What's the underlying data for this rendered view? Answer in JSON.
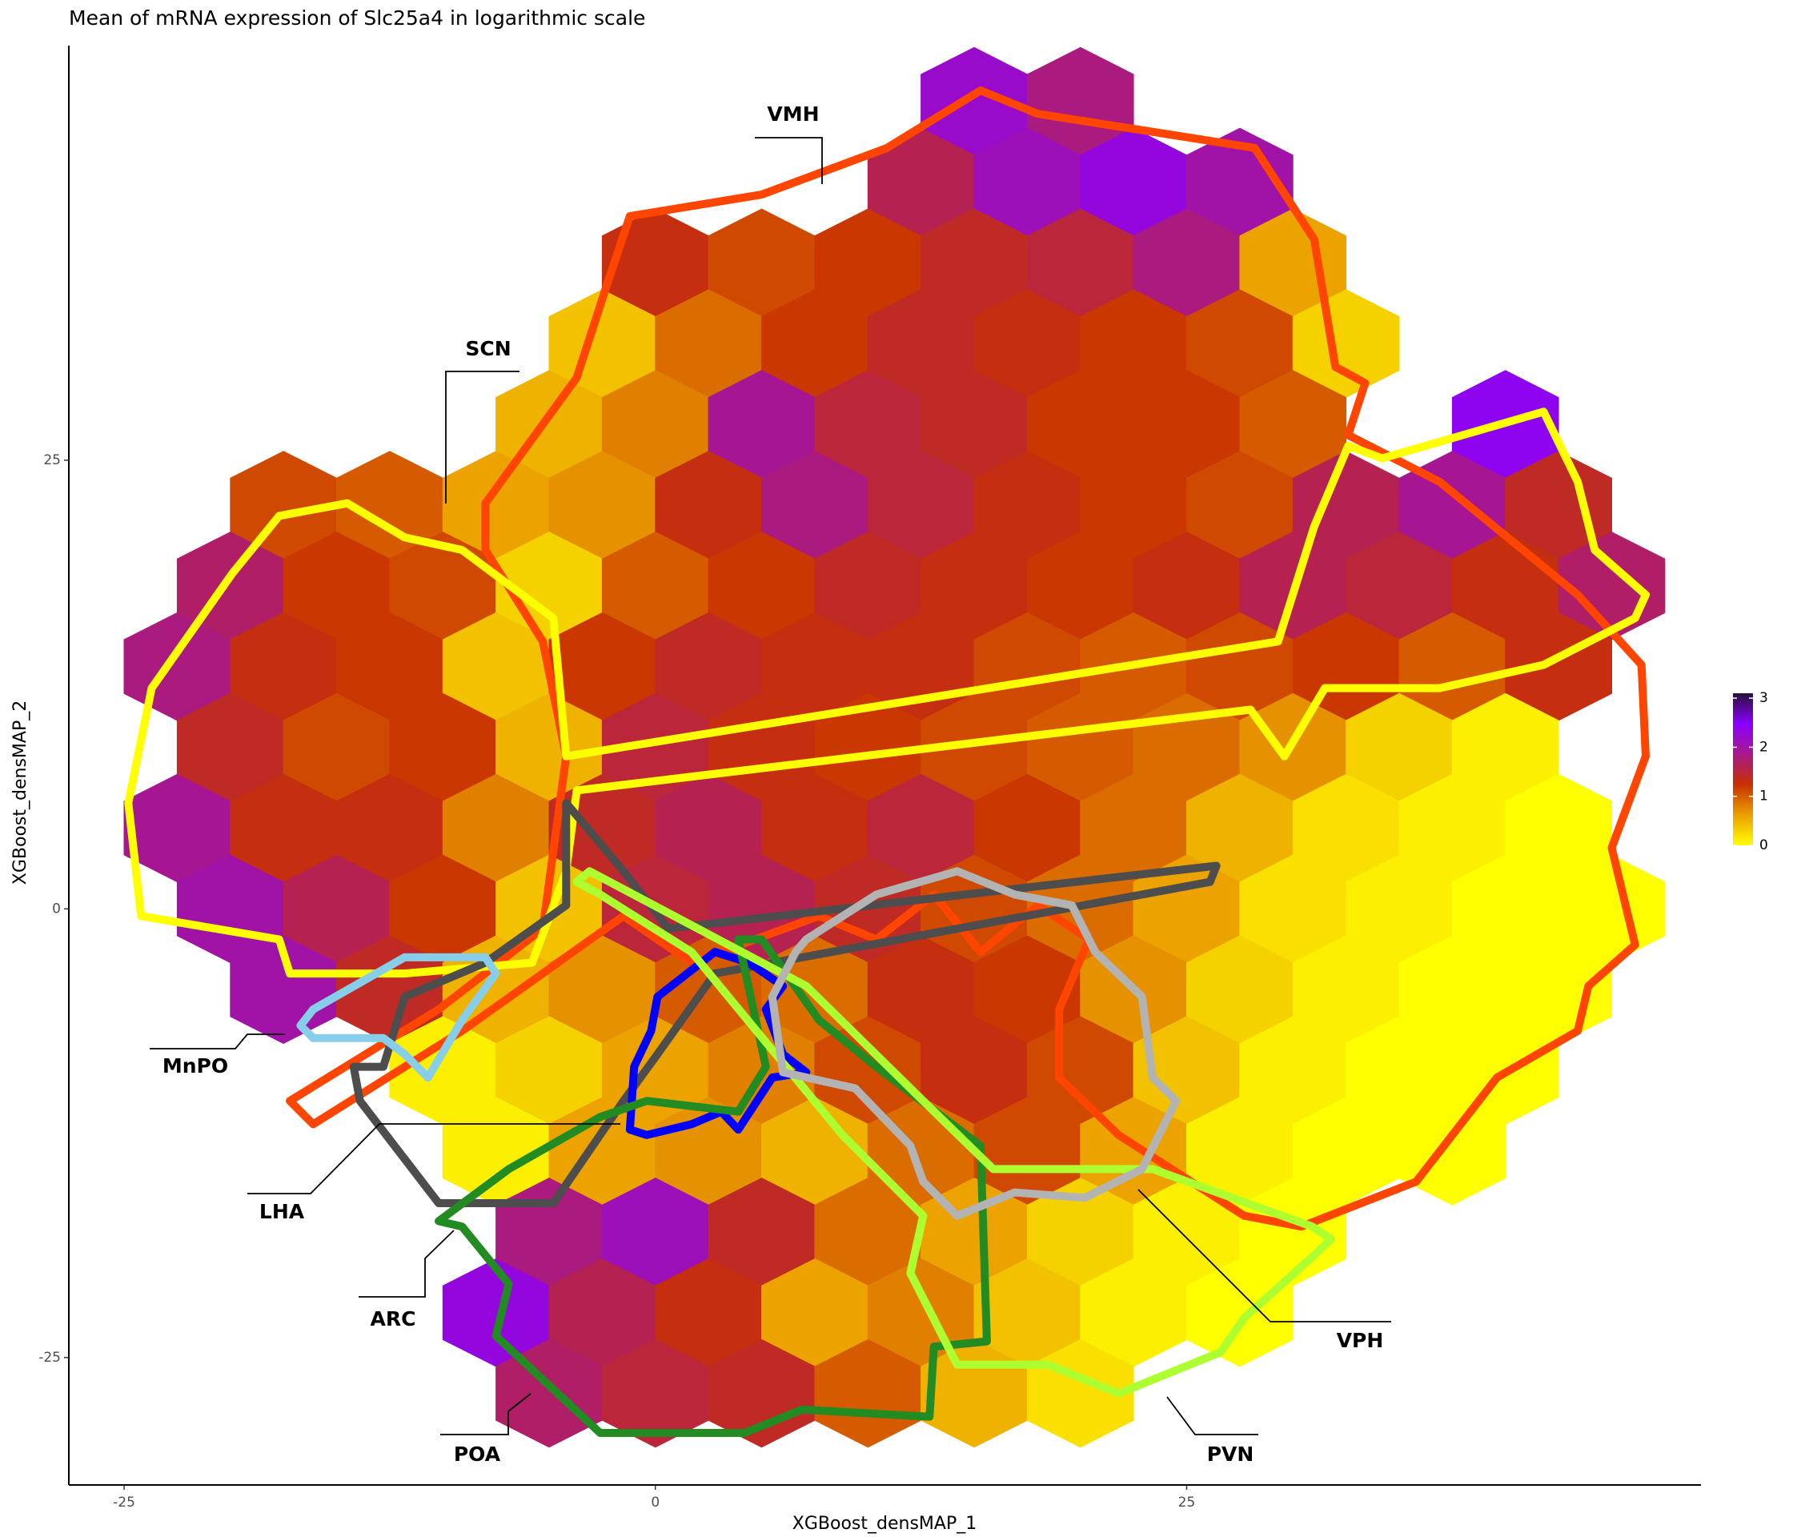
{
  "chart_data": {
    "type": "hexbin",
    "title": "Mean of mRNA expression of Slc25a4 in logarithmic scale",
    "x_label": "XGBoost_densMAP_1",
    "y_label": "XGBoost_densMAP_2",
    "xlim": [
      -27.6,
      49.2
    ],
    "ylim": [
      -32.1,
      48.1
    ],
    "xticks": [
      -25,
      0,
      25
    ],
    "yticks": [
      -25,
      0,
      25
    ],
    "grid": false,
    "clim": [
      0,
      3.1
    ],
    "cticks": [
      0,
      1,
      2,
      3
    ],
    "colorscale": [
      "#ffff00",
      "#eba000",
      "#c83000",
      "#a8188c",
      "#8a00ff",
      "#261238"
    ],
    "hexes": [
      {
        "y": 45,
        "x": [
          15,
          20
        ],
        "values": [
          2.2,
          1.8
        ]
      },
      {
        "y": 40.5,
        "x": [
          12.5,
          17.5,
          22.5,
          27.5
        ],
        "values": [
          1.6,
          2.1,
          2.3,
          2.0
        ]
      },
      {
        "y": 36,
        "x": [
          0,
          5,
          10,
          15,
          20,
          25,
          30
        ],
        "values": [
          1.3,
          1.1,
          1.2,
          1.4,
          1.5,
          1.8,
          0.6
        ]
      },
      {
        "y": 31.5,
        "x": [
          -2.5,
          2.5,
          7.5,
          12.5,
          17.5,
          22.5,
          27.5,
          32.5
        ],
        "values": [
          0.4,
          0.9,
          1.2,
          1.4,
          1.3,
          1.2,
          1.1,
          0.3
        ]
      },
      {
        "y": 27,
        "x": [
          -5,
          0,
          5,
          10,
          15,
          20,
          25,
          30,
          40
        ],
        "values": [
          0.5,
          0.8,
          1.9,
          1.5,
          1.4,
          1.2,
          1.2,
          1.0,
          2.4
        ]
      },
      {
        "y": 22.5,
        "x": [
          -17.5,
          -12.5,
          -7.5,
          -2.5,
          2.5,
          7.5,
          12.5,
          17.5,
          22.5,
          27.5,
          32.5,
          37.5,
          42.5
        ],
        "values": [
          1.1,
          1.0,
          0.6,
          0.7,
          1.3,
          1.8,
          1.5,
          1.3,
          1.2,
          1.1,
          1.6,
          1.9,
          1.4
        ]
      },
      {
        "y": 18,
        "x": [
          -20,
          -15,
          -10,
          -5,
          0,
          5,
          10,
          15,
          20,
          25,
          30,
          35,
          40,
          45
        ],
        "values": [
          1.7,
          1.2,
          1.1,
          0.3,
          1.0,
          1.2,
          1.4,
          1.3,
          1.2,
          1.3,
          1.6,
          1.5,
          1.3,
          1.7
        ]
      },
      {
        "y": 13.5,
        "x": [
          -22.5,
          -17.5,
          -12.5,
          -7.5,
          -2.5,
          2.5,
          7.5,
          12.5,
          17.5,
          22.5,
          27.5,
          32.5,
          37.5,
          42.5
        ],
        "values": [
          1.8,
          1.3,
          1.2,
          0.4,
          1.2,
          1.4,
          1.3,
          1.3,
          1.1,
          1.0,
          1.1,
          1.2,
          1.0,
          1.3
        ]
      },
      {
        "y": 9,
        "x": [
          -20,
          -15,
          -10,
          -5,
          0,
          5,
          10,
          15,
          20,
          25,
          30,
          35,
          40
        ],
        "values": [
          1.4,
          1.1,
          1.2,
          0.5,
          1.5,
          1.3,
          1.2,
          1.1,
          1.0,
          0.9,
          0.7,
          0.3,
          0.1
        ]
      },
      {
        "y": 4.5,
        "x": [
          -22.5,
          -17.5,
          -12.5,
          -7.5,
          -2.5,
          2.5,
          7.5,
          12.5,
          17.5,
          22.5,
          27.5,
          32.5,
          37.5,
          42.5
        ],
        "values": [
          1.9,
          1.3,
          1.3,
          0.8,
          1.4,
          1.6,
          1.3,
          1.5,
          1.2,
          0.9,
          0.5,
          0.2,
          0.1,
          0
        ]
      },
      {
        "y": 0,
        "x": [
          -20,
          -15,
          -10,
          -5,
          0,
          5,
          10,
          15,
          20,
          25,
          30,
          35,
          40,
          45
        ],
        "values": [
          2.0,
          1.6,
          1.2,
          0.4,
          1.5,
          1.6,
          1.4,
          1.1,
          0.9,
          0.6,
          0.2,
          0.1,
          0,
          0
        ]
      },
      {
        "y": -4.5,
        "x": [
          -17.5,
          -12.5,
          -7.5,
          -2.5,
          2.5,
          7.5,
          12.5,
          17.5,
          22.5,
          27.5,
          32.5,
          37.5,
          42.5
        ],
        "values": [
          2.0,
          1.4,
          0.5,
          0.7,
          1.0,
          0.9,
          1.3,
          1.2,
          0.7,
          0.3,
          0.1,
          0,
          0
        ]
      },
      {
        "y": -9,
        "x": [
          -10,
          -5,
          0,
          5,
          10,
          15,
          20,
          25,
          30,
          35,
          40
        ],
        "values": [
          0.1,
          0.3,
          0.6,
          0.8,
          1.1,
          1.3,
          1.1,
          0.4,
          0.1,
          0,
          0
        ]
      },
      {
        "y": -13.5,
        "x": [
          -7.5,
          -2.5,
          2.5,
          7.5,
          12.5,
          17.5,
          22.5,
          27.5,
          32.5,
          37.5
        ],
        "values": [
          0.1,
          0.6,
          0.7,
          0.5,
          0.9,
          1.1,
          0.6,
          0.1,
          0,
          0
        ]
      },
      {
        "y": -18,
        "x": [
          -5,
          0,
          5,
          10,
          15,
          20,
          25,
          30
        ],
        "values": [
          1.8,
          2.1,
          1.4,
          0.9,
          0.6,
          0.3,
          0.1,
          0
        ]
      },
      {
        "y": -22.5,
        "x": [
          -7.5,
          -2.5,
          2.5,
          7.5,
          12.5,
          17.5,
          22.5,
          27.5
        ],
        "values": [
          2.3,
          1.6,
          1.3,
          0.6,
          0.8,
          0.4,
          0.1,
          0
        ]
      },
      {
        "y": -27,
        "x": [
          -5,
          0,
          5,
          10,
          15,
          20
        ],
        "values": [
          1.7,
          1.5,
          1.4,
          1.0,
          0.5,
          0.2
        ]
      }
    ],
    "regions": [
      {
        "name": "VMH",
        "color": "#ff4500",
        "x": [
          -8.0,
          -3.7,
          -2.3,
          -1.2,
          5.0,
          10.9,
          15.3,
          18.0,
          28.2,
          31.0,
          32.0,
          33.4,
          32.6,
          36.9,
          43.4,
          46.4,
          46.6,
          45.0,
          46.1,
          43.9,
          43.4,
          39.6,
          35.8,
          30.4,
          27.7,
          21.8,
          19.0,
          19.0,
          20.4,
          18.0,
          15.3,
          13.1,
          10.4,
          7.7,
          1.7,
          -1.5,
          -9.1,
          -16.1,
          -17.2,
          -10.2,
          -5.3,
          -4.2,
          -5.3,
          -8.0
        ],
        "y": [
          22.6,
          29.6,
          34.7,
          38.6,
          39.8,
          42.4,
          45.6,
          44.3,
          42.4,
          37.3,
          30.2,
          29.3,
          26.4,
          23.8,
          17.5,
          13.6,
          8.5,
          3.4,
          -2.0,
          -4.3,
          -6.8,
          -9.4,
          -15.2,
          -17.7,
          -17.1,
          -12.6,
          -9.4,
          -5.6,
          -1.7,
          0.2,
          -2.4,
          0.8,
          -1.7,
          -0.4,
          -3.0,
          -0.4,
          -6.8,
          -12.0,
          -10.7,
          -5.6,
          -1.1,
          8.5,
          14.9,
          20.0
        ]
      },
      {
        "name": "SCN",
        "color": "#ffff00",
        "x": [
          -24.2,
          -24.8,
          -23.7,
          -19.9,
          -17.7,
          -14.5,
          -11.8,
          -9.1,
          -4.8,
          -4.2,
          29.3,
          31.0,
          32.6,
          34.2,
          41.8,
          43.4,
          44.2,
          46.6,
          46.1,
          41.8,
          36.9,
          31.5,
          29.6,
          28.0,
          -3.7,
          -4.2,
          -5.8,
          -11.8,
          -17.2,
          -17.7
        ],
        "y": [
          -0.4,
          5.9,
          12.3,
          18.7,
          21.9,
          22.6,
          20.7,
          20.0,
          16.2,
          8.5,
          14.9,
          21.3,
          25.8,
          25.1,
          27.7,
          23.8,
          20.0,
          17.5,
          16.2,
          13.6,
          12.3,
          12.3,
          8.5,
          11.1,
          6.6,
          2.1,
          -3.0,
          -3.6,
          -3.6,
          -1.7
        ]
      },
      {
        "name": "LHA",
        "color": "#4d4d4d",
        "x": [
          -4.2,
          -4.2,
          -1.5,
          0.6,
          26.4,
          26.1,
          2.8,
          0.1,
          -1.5,
          -2.6,
          -4.8,
          -10.2,
          -13.9,
          -14.2,
          -12.8,
          -11.8,
          -8.0
        ],
        "y": [
          0.2,
          5.9,
          2.1,
          -1.1,
          2.4,
          1.5,
          -3.6,
          -8.1,
          -10.7,
          -12.6,
          -16.4,
          -16.4,
          -10.7,
          -8.8,
          -8.8,
          -4.9,
          -3.0
        ]
      },
      {
        "name": "MnPO",
        "color": "#87ceeb",
        "x": [
          -16.7,
          -16.1,
          -11.8,
          -8.0,
          -7.5,
          -9.1,
          -10.7,
          -11.8,
          -12.8,
          -16.1
        ],
        "y": [
          -6.5,
          -5.6,
          -2.7,
          -2.7,
          -3.6,
          -6.2,
          -9.4,
          -8.1,
          -7.2,
          -7.2
        ]
      },
      {
        "name": "ARC",
        "color": "#0000ff",
        "x": [
          0.1,
          2.8,
          4.4,
          6.0,
          5.2,
          6.0,
          7.1,
          5.5,
          3.9,
          3.1,
          1.7,
          -0.4,
          -1.2,
          -1.0,
          -0.2
        ],
        "y": [
          -4.9,
          -2.4,
          -3.0,
          -4.3,
          -5.6,
          -8.1,
          -9.1,
          -9.4,
          -12.3,
          -11.3,
          -12.0,
          -12.6,
          -12.3,
          -8.8,
          -6.8
        ]
      },
      {
        "name": "POA",
        "color": "#228b22",
        "x": [
          -10.2,
          -6.9,
          -2.6,
          -0.4,
          3.9,
          5.2,
          3.9,
          5.0,
          7.7,
          10.4,
          15.3,
          15.6,
          13.1,
          12.9,
          6.9,
          4.2,
          -2.6,
          -7.5,
          -6.9,
          -9.1
        ],
        "y": [
          -17.4,
          -14.5,
          -11.6,
          -10.7,
          -11.3,
          -8.8,
          -1.7,
          -1.7,
          -6.2,
          -8.8,
          -13.2,
          -24.1,
          -24.4,
          -28.3,
          -27.9,
          -29.2,
          -29.2,
          -23.8,
          -20.9,
          -17.7
        ]
      },
      {
        "name": "PVN",
        "color": "#adff2f",
        "x": [
          -3.7,
          -3.1,
          7.1,
          12.6,
          15.9,
          23.4,
          30.9,
          31.8,
          31.0,
          27.7,
          26.6,
          21.8,
          18.5,
          14.2,
          12.0,
          12.6,
          8.8,
          1.7,
          -2.6
        ],
        "y": [
          1.5,
          2.1,
          -4.3,
          -10.7,
          -14.5,
          -14.5,
          -17.7,
          -18.4,
          -19.3,
          -22.8,
          -24.7,
          -27.0,
          -25.4,
          -25.4,
          -20.3,
          -17.1,
          -12.6,
          -2.4,
          0.8
        ]
      },
      {
        "name": "VPH",
        "color": "#b3b3b3",
        "x": [
          7.1,
          10.4,
          14.2,
          16.9,
          19.6,
          20.7,
          22.9,
          23.4,
          24.5,
          22.9,
          20.2,
          16.9,
          14.2,
          12.6,
          12.0,
          9.4,
          6.0,
          5.5,
          6.6
        ],
        "y": [
          -1.7,
          0.8,
          2.1,
          0.8,
          0.2,
          -2.4,
          -4.9,
          -9.4,
          -10.7,
          -14.5,
          -16.1,
          -15.8,
          -17.1,
          -15.2,
          -13.2,
          -10.0,
          -9.1,
          -4.9,
          -2.4
        ]
      }
    ]
  }
}
